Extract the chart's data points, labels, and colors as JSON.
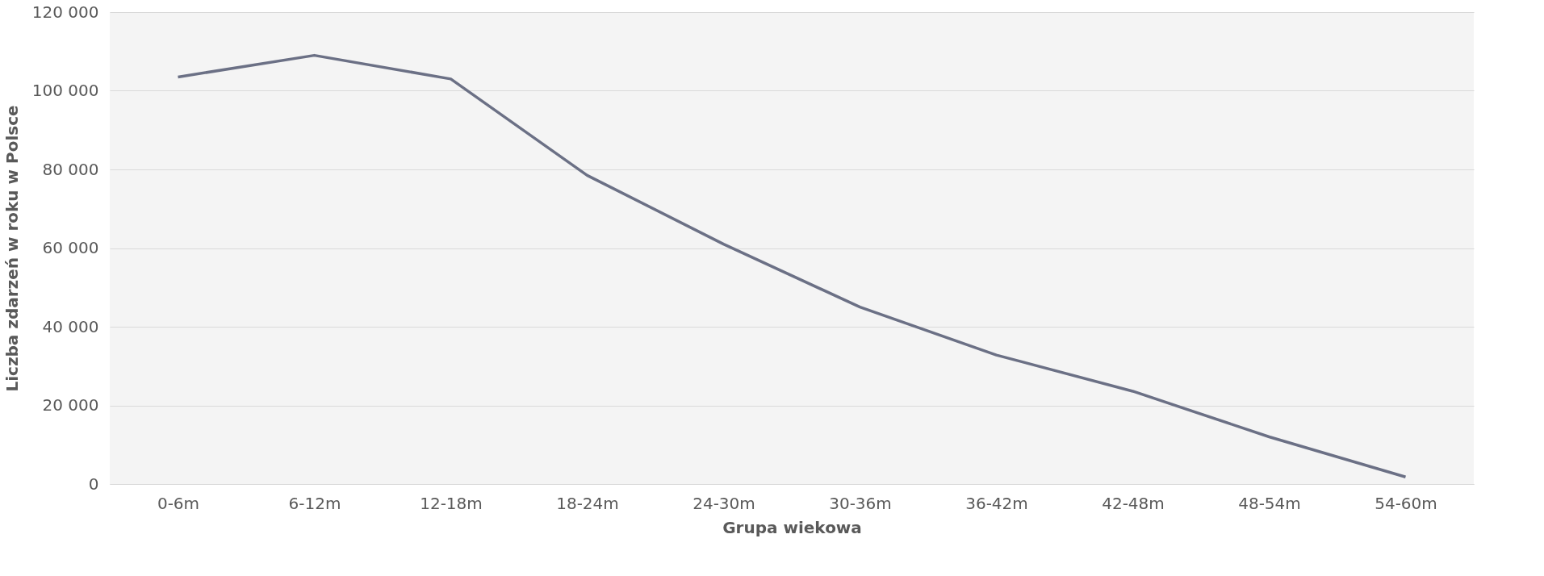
{
  "chart_data": {
    "type": "line",
    "xlabel": "Grupa wiekowa",
    "ylabel": "Liczba zdarzeń w roku w Polsce",
    "categories": [
      "0-6m",
      "6-12m",
      "12-18m",
      "18-24m",
      "24-30m",
      "30-36m",
      "36-42m",
      "42-48m",
      "48-54m",
      "54-60m"
    ],
    "series": [
      {
        "color": "#6b7085",
        "values": [
          103500,
          109000,
          103000,
          78500,
          61000,
          45000,
          32800,
          23600,
          12000,
          1800
        ]
      }
    ],
    "ylim": [
      0,
      120000
    ],
    "yticks": [
      {
        "value": 0,
        "label": "0"
      },
      {
        "value": 20000,
        "label": "20 000"
      },
      {
        "value": 40000,
        "label": "40 000"
      },
      {
        "value": 60000,
        "label": "60 000"
      },
      {
        "value": 80000,
        "label": "80 000"
      },
      {
        "value": 100000,
        "label": "100 000"
      },
      {
        "value": 120000,
        "label": "120 000"
      }
    ],
    "grid": "y",
    "marker": "none",
    "line_style": "solid"
  }
}
